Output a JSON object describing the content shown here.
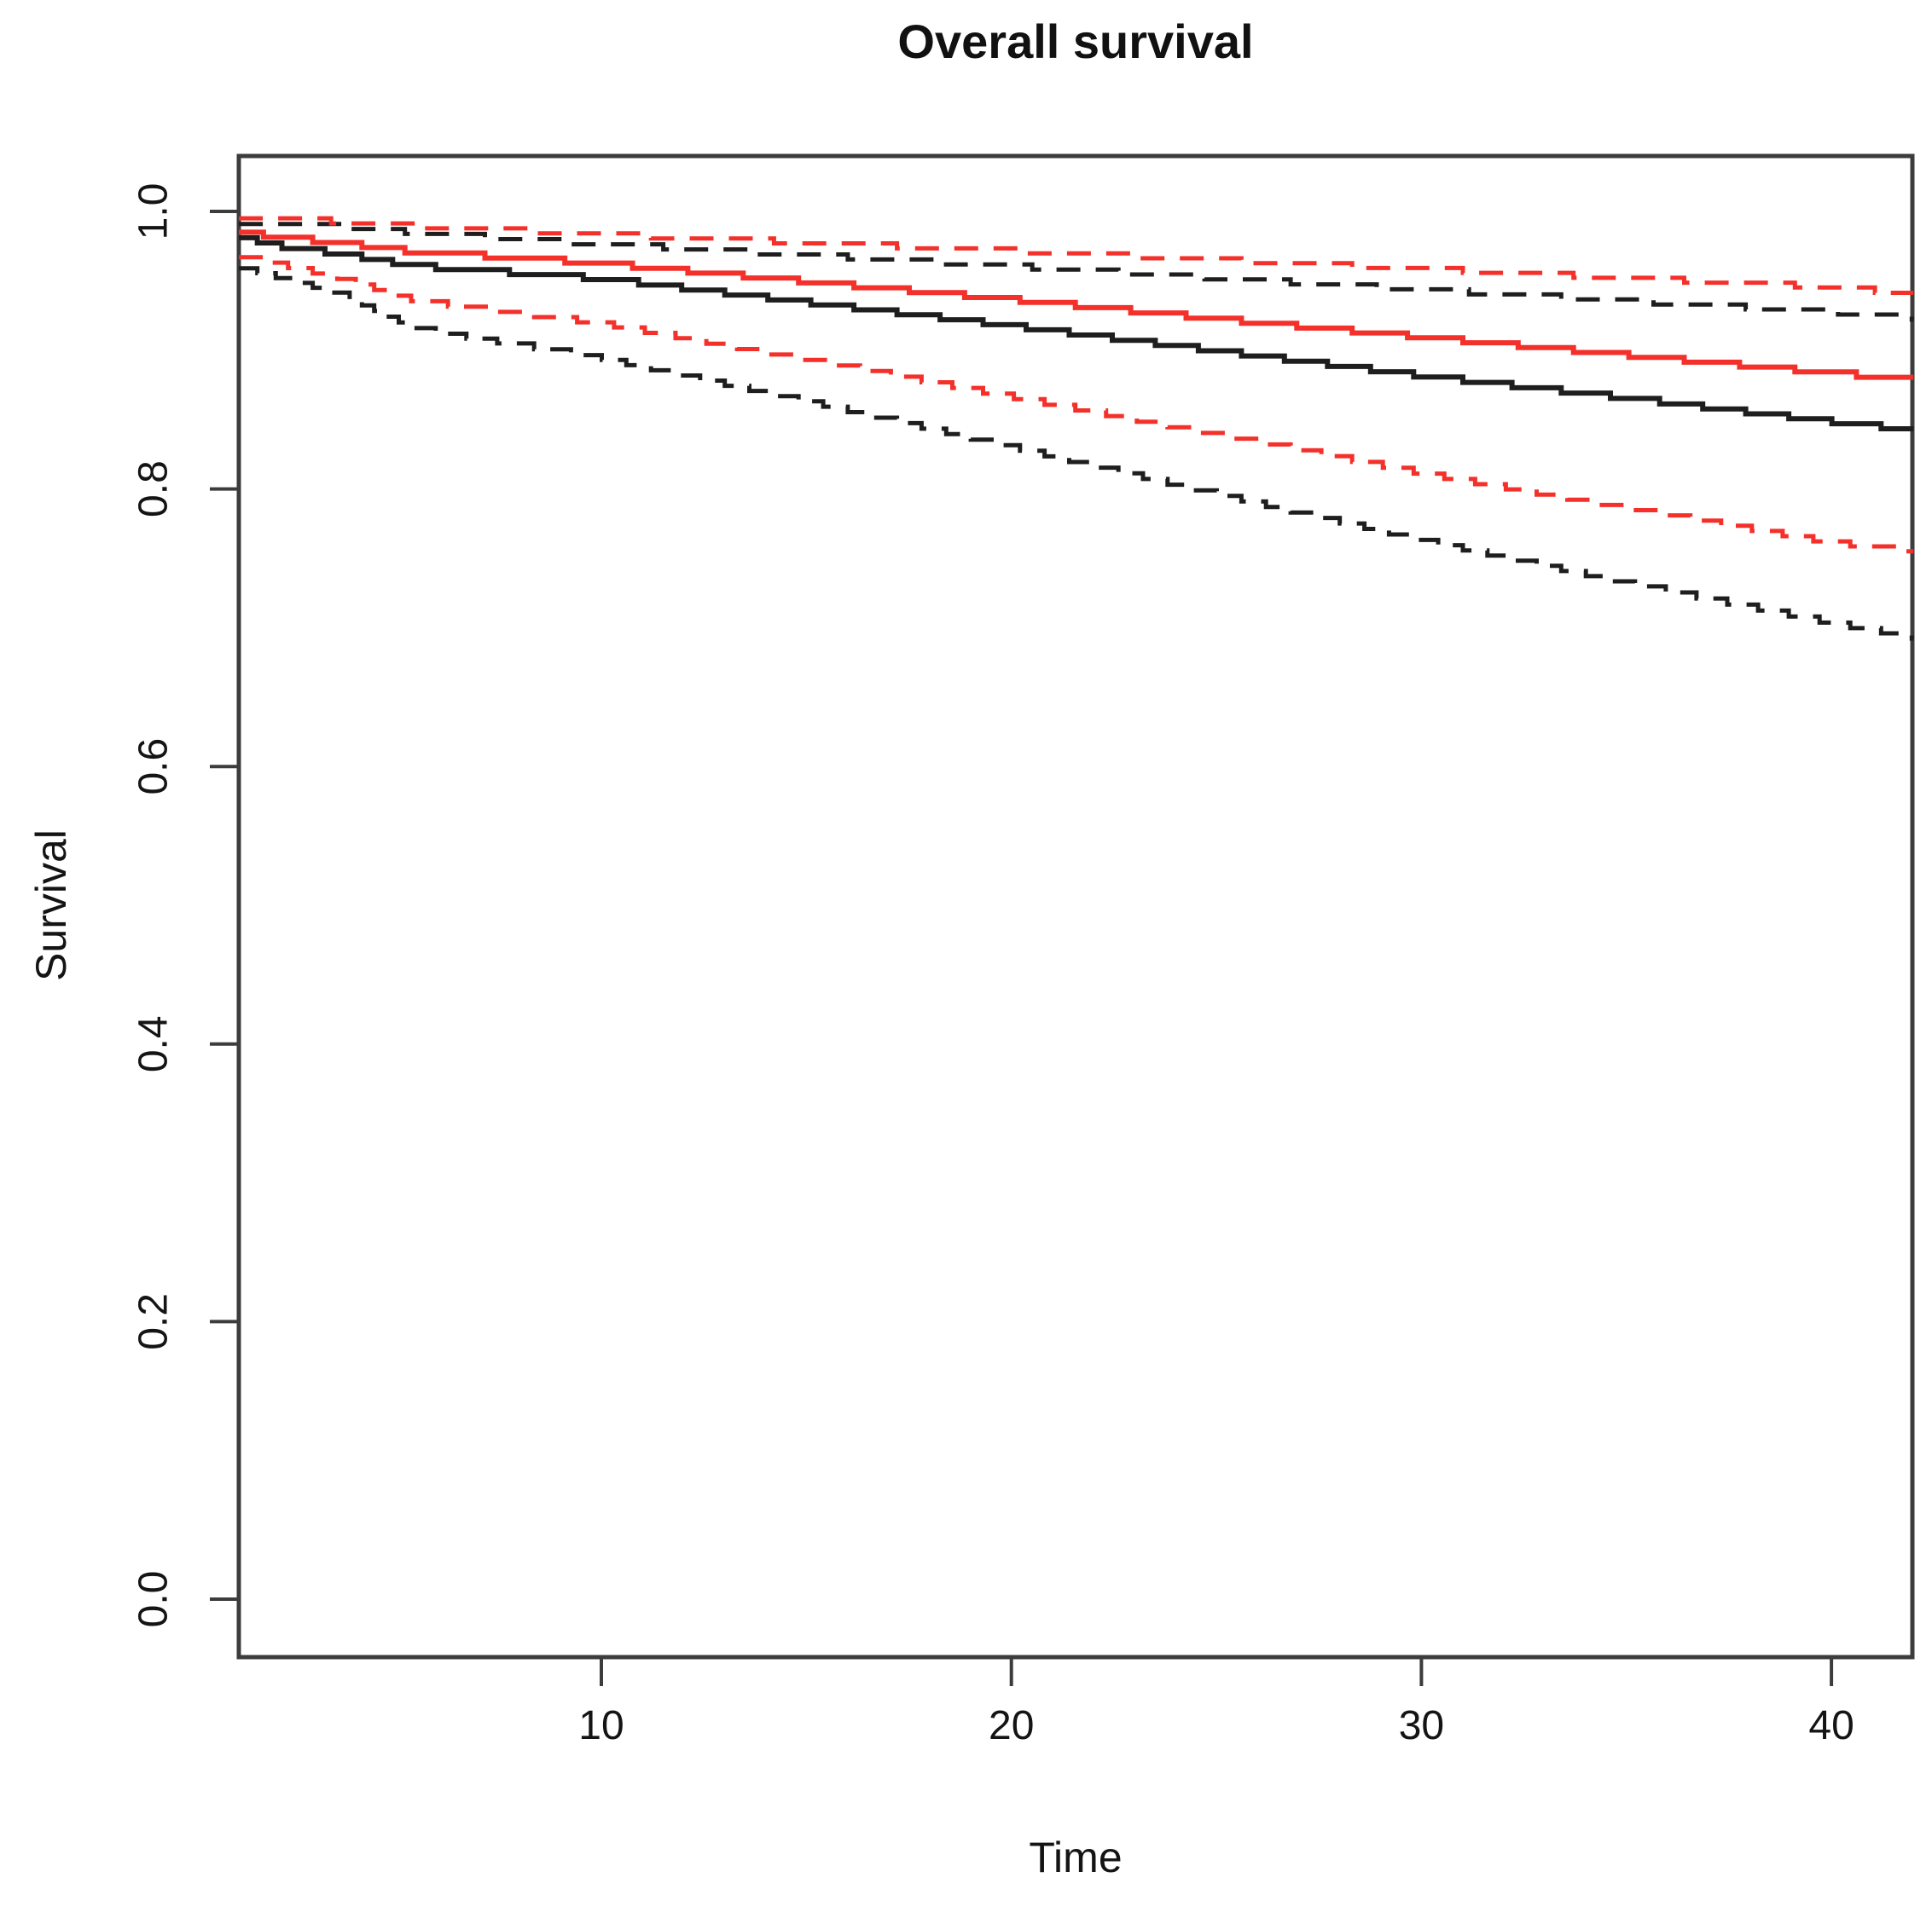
{
  "title": "Overall survival",
  "chart_data": {
    "type": "line",
    "subtype": "kaplan-meier-survival",
    "title": "Overall survival",
    "xlabel": "Time",
    "ylabel": "Survival",
    "xlim": [
      1.16,
      42
    ],
    "ylim": [
      0,
      1
    ],
    "x_ticks": [
      10,
      20,
      30,
      40
    ],
    "y_ticks": [
      0.0,
      0.2,
      0.4,
      0.6,
      0.8,
      1.0
    ],
    "grid": false,
    "legend_position": "none",
    "colors": {
      "group1": "#1e1e1e",
      "group2": "#f3302a",
      "axis": "#3c3c3c",
      "text": "#141414",
      "background": "#ffffff"
    },
    "series": [
      {
        "name": "group1-survival",
        "role": "estimate",
        "color_key": "group1",
        "line": "solid",
        "points": [
          [
            1.16,
            0.981
          ],
          [
            2,
            0.974
          ],
          [
            3.6,
            0.968
          ],
          [
            5.5,
            0.959
          ],
          [
            8,
            0.954
          ],
          [
            10,
            0.95
          ],
          [
            15,
            0.933
          ],
          [
            20,
            0.916
          ],
          [
            25,
            0.898
          ],
          [
            30,
            0.88
          ],
          [
            35,
            0.864
          ],
          [
            40,
            0.847
          ],
          [
            42,
            0.841
          ]
        ]
      },
      {
        "name": "group1-ci-upper",
        "role": "ci-upper",
        "color_key": "group1",
        "line": "dashed",
        "points": [
          [
            1.16,
            0.991
          ],
          [
            3.6,
            0.988
          ],
          [
            5.5,
            0.983
          ],
          [
            10,
            0.975
          ],
          [
            15,
            0.967
          ],
          [
            20,
            0.959
          ],
          [
            30,
            0.942
          ],
          [
            40,
            0.926
          ],
          [
            42,
            0.922
          ]
        ]
      },
      {
        "name": "group1-ci-lower",
        "role": "ci-lower",
        "color_key": "group1",
        "line": "dashed",
        "points": [
          [
            1.16,
            0.959
          ],
          [
            3.6,
            0.94
          ],
          [
            5.5,
            0.914
          ],
          [
            10,
            0.893
          ],
          [
            15,
            0.862
          ],
          [
            20,
            0.829
          ],
          [
            25,
            0.795
          ],
          [
            30,
            0.762
          ],
          [
            35,
            0.731
          ],
          [
            40,
            0.702
          ],
          [
            42,
            0.692
          ]
        ]
      },
      {
        "name": "group2-survival",
        "role": "estimate",
        "color_key": "group2",
        "line": "solid",
        "points": [
          [
            1.16,
            0.985
          ],
          [
            2,
            0.98
          ],
          [
            3.6,
            0.976
          ],
          [
            5.5,
            0.969
          ],
          [
            8,
            0.965
          ],
          [
            10,
            0.961
          ],
          [
            15,
            0.948
          ],
          [
            20,
            0.935
          ],
          [
            25,
            0.921
          ],
          [
            30,
            0.908
          ],
          [
            35,
            0.895
          ],
          [
            40,
            0.882
          ],
          [
            42,
            0.877
          ]
        ]
      },
      {
        "name": "group2-ci-upper",
        "role": "ci-upper",
        "color_key": "group2",
        "line": "dashed",
        "points": [
          [
            1.16,
            0.995
          ],
          [
            3.6,
            0.991
          ],
          [
            5.5,
            0.988
          ],
          [
            10,
            0.982
          ],
          [
            15,
            0.976
          ],
          [
            20,
            0.97
          ],
          [
            30,
            0.957
          ],
          [
            40,
            0.944
          ],
          [
            42,
            0.939
          ]
        ]
      },
      {
        "name": "group2-ci-lower",
        "role": "ci-lower",
        "color_key": "group2",
        "line": "dashed",
        "points": [
          [
            1.16,
            0.967
          ],
          [
            3.6,
            0.951
          ],
          [
            5.5,
            0.934
          ],
          [
            10,
            0.918
          ],
          [
            15,
            0.892
          ],
          [
            20,
            0.865
          ],
          [
            25,
            0.838
          ],
          [
            30,
            0.81
          ],
          [
            35,
            0.785
          ],
          [
            40,
            0.76
          ],
          [
            42,
            0.754
          ]
        ]
      }
    ]
  }
}
